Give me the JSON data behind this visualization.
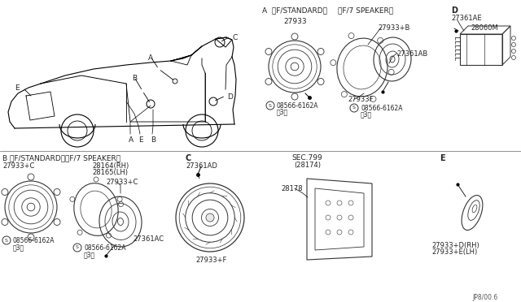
{
  "bg_color": "#ffffff",
  "fig_width": 6.4,
  "fig_height": 3.72,
  "labels": {
    "A_header": "A  〈F/STANDARD〉",
    "A_header2": "〈F/7 SPEAKER〉",
    "A_part1": "27933",
    "A_bolt": "08566-6162A",
    "A_bolt_qty": "〨3〩",
    "F_label": "27933+B",
    "F_label2": "27361AB",
    "F_part3": "27933F",
    "F_bolt": "08566-6162A",
    "F_bolt_qty": "〨3〩",
    "D_header": "D",
    "D_part1": "27361AE",
    "D_part2": "28060M",
    "B_header": "B 〈F/STANDARD〉",
    "B_header2": "〈F/7 SPEAKER〉",
    "B_part1": "27933+C",
    "B_part2_rh": "28164(RH)",
    "B_part2_lh": "28165(LH)",
    "B_part3": "27933+C",
    "B_part4": "27361AC",
    "B_bolt": "08566-6162A",
    "B_bolt_qty": "〨3〩",
    "B_bolt2": "08566-6162A",
    "B_bolt2_qty": "〨3〩",
    "C_header": "C",
    "C_part1": "27361AD",
    "C_part2": "27933+F",
    "SEC_label": "SEC.799",
    "SEC_sub": "(28174)",
    "SEC_part": "28178",
    "E_header": "E",
    "E_part1": "27933+D(RH)",
    "E_part2": "27933+E(LH)",
    "footer": "JP8/00.6"
  }
}
